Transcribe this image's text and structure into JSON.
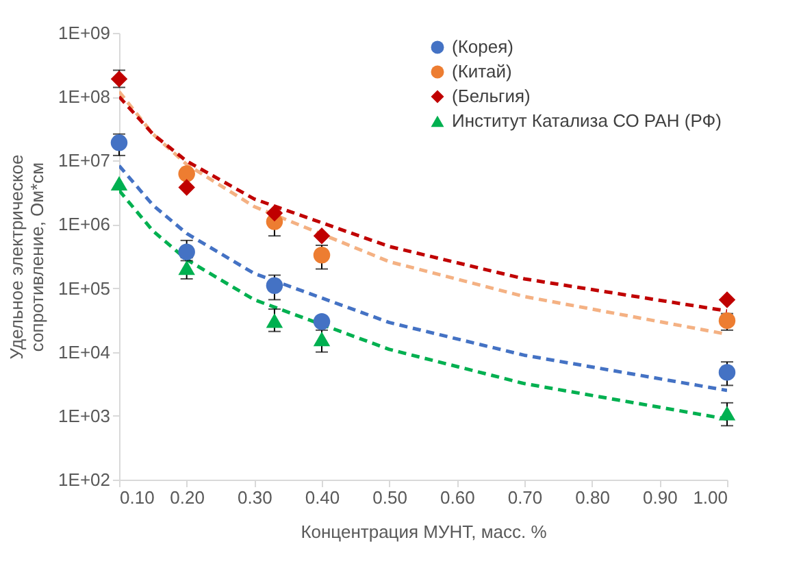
{
  "chart_data": {
    "type": "scatter",
    "log": "y",
    "xlabel": "Концентрация МУНТ, масс. %",
    "ylabel": "Удельное электрическое сопротивление, Ом*см",
    "legend": "top right",
    "grid": false,
    "xlim": [
      0.1,
      1.0
    ],
    "xticks": [
      {
        "value": 0.1,
        "label": "0.10"
      },
      {
        "value": 0.2,
        "label": "0.20"
      },
      {
        "value": 0.3,
        "label": "0.30"
      },
      {
        "value": 0.4,
        "label": "0.40"
      },
      {
        "value": 0.5,
        "label": "0.50"
      },
      {
        "value": 0.6,
        "label": "0.60"
      },
      {
        "value": 0.7,
        "label": "0.70"
      },
      {
        "value": 0.8,
        "label": "0.80"
      },
      {
        "value": 0.9,
        "label": "0.90"
      },
      {
        "value": 1.0,
        "label": "1.00"
      }
    ],
    "ylim": [
      100,
      1000000000
    ],
    "yticks": [
      {
        "value": 100,
        "label": "1E+02"
      },
      {
        "value": 1000,
        "label": "1E+03"
      },
      {
        "value": 10000,
        "label": "1E+04"
      },
      {
        "value": 100000,
        "label": "1E+05"
      },
      {
        "value": 1000000,
        "label": "1E+06"
      },
      {
        "value": 10000000,
        "label": "1E+07"
      },
      {
        "value": 100000000,
        "label": "1E+08"
      },
      {
        "value": 1000000000,
        "label": "1E+09"
      }
    ],
    "x": [
      0.1,
      0.2,
      0.33,
      0.4,
      1.0
    ],
    "series": [
      {
        "type": "line",
        "color": "#4472c4",
        "line_style": "dashed",
        "marker": "none",
        "x": [
          0.1,
          0.15,
          0.2,
          0.3,
          0.5,
          0.7,
          1.0
        ],
        "values": [
          8300000,
          2000000,
          720000,
          170000,
          29000,
          8900,
          2500
        ]
      },
      {
        "type": "line",
        "color": "#f4b183",
        "line_style": "dashed",
        "marker": "none",
        "x": [
          0.1,
          0.15,
          0.2,
          0.3,
          0.5,
          0.7,
          1.0
        ],
        "values": [
          120000000,
          26000000,
          8700000,
          1900000,
          260000,
          74000,
          19000
        ]
      },
      {
        "type": "line",
        "color": "#c00000",
        "line_style": "dashed",
        "marker": "none",
        "x": [
          0.1,
          0.15,
          0.2,
          0.3,
          0.5,
          0.7,
          1.0
        ],
        "values": [
          100000000,
          26000000,
          9800000,
          2500000,
          450000,
          140000,
          44000
        ]
      },
      {
        "type": "line",
        "color": "#00b050",
        "line_style": "dashed",
        "marker": "none",
        "x": [
          0.1,
          0.15,
          0.2,
          0.3,
          0.5,
          0.7,
          1.0
        ],
        "values": [
          3400000,
          790000,
          280000,
          66000,
          11000,
          3200,
          890
        ]
      },
      {
        "name": "(Корея)",
        "color": "#4472c4",
        "marker": "circle",
        "values": [
          19000000,
          370000,
          110000,
          30000,
          4800
        ],
        "errors": [
          [
            12000000,
            26000000
          ],
          [
            270000,
            560000
          ],
          [
            66000,
            160000
          ],
          null,
          [
            3000,
            7000
          ]
        ]
      },
      {
        "name": "(Китай)",
        "color": "#ed7d31",
        "marker": "circle",
        "values": [
          null,
          6200000,
          1100000,
          330000,
          31000
        ],
        "errors": [
          null,
          null,
          [
            660000,
            1500000
          ],
          [
            200000,
            470000
          ],
          [
            22000,
            40000
          ]
        ]
      },
      {
        "name": "(Бельгия)",
        "color": "#c00000",
        "marker": "diamond",
        "values": [
          190000000,
          3800000,
          1500000,
          660000,
          66000
        ],
        "errors": [
          [
            140000000,
            260000000
          ],
          null,
          null,
          null,
          null
        ]
      },
      {
        "name": "Институт Катализа СО РАН (РФ)",
        "color": "#00b050",
        "marker": "triangle",
        "values": [
          4400000,
          210000,
          31000,
          16000,
          1100
        ],
        "errors": [
          null,
          [
            140000,
            300000
          ],
          [
            21000,
            47000
          ],
          [
            10000,
            22000
          ],
          [
            700,
            1600
          ]
        ]
      }
    ]
  }
}
